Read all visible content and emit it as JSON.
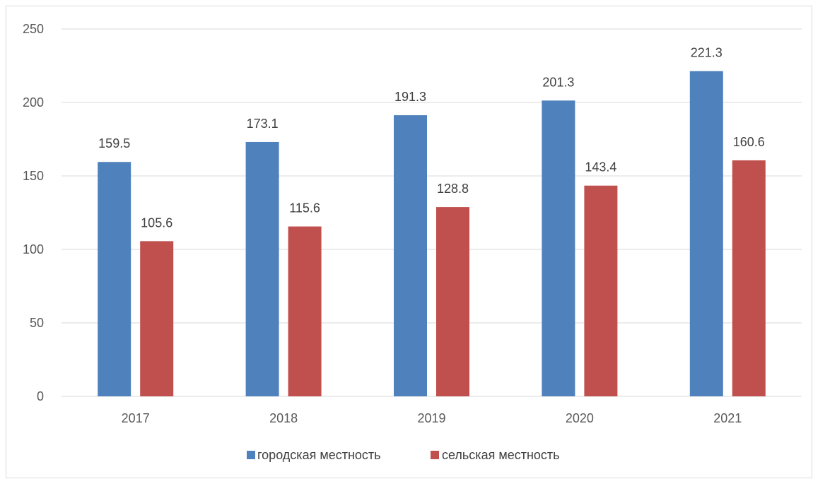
{
  "chart_data": {
    "type": "bar",
    "title": "",
    "xlabel": "",
    "ylabel": "",
    "categories": [
      "2017",
      "2018",
      "2019",
      "2020",
      "2021"
    ],
    "series": [
      {
        "name": "городская местность",
        "color": "#4f81bd",
        "values": [
          159.5,
          173.1,
          191.3,
          201.3,
          221.3
        ]
      },
      {
        "name": "сельская местность",
        "color": "#c0504d",
        "values": [
          105.6,
          115.6,
          128.8,
          143.4,
          160.6
        ]
      }
    ],
    "ylim": [
      0,
      250
    ],
    "yticks": [
      0,
      50,
      100,
      150,
      200,
      250
    ],
    "grid": true,
    "legend_position": "bottom",
    "data_labels": true
  }
}
